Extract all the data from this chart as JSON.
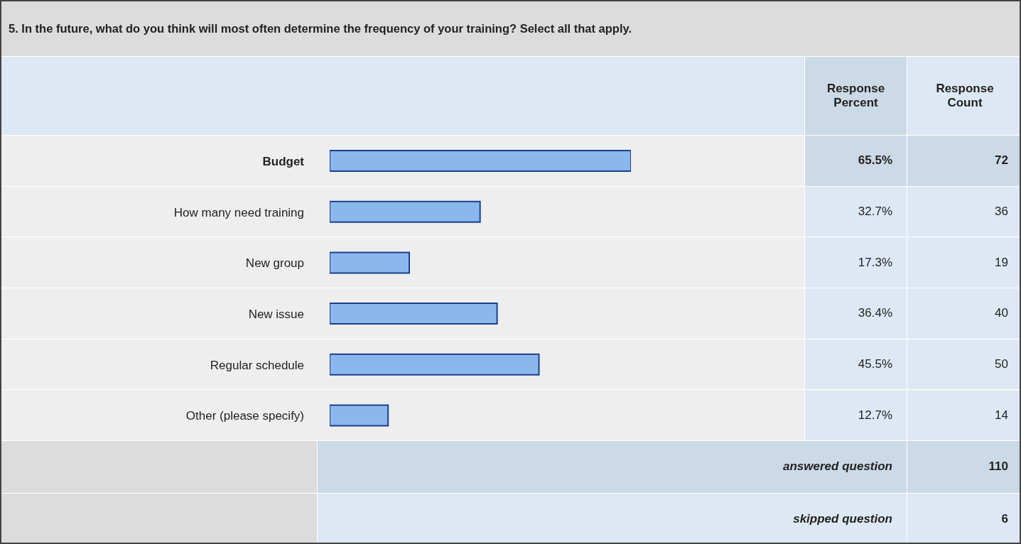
{
  "chart_data": {
    "type": "bar",
    "orientation": "horizontal",
    "title": "5. In the future, what do you think will most often determine the frequency of your training? Select all that apply.",
    "categories": [
      "Budget",
      "How many need training",
      "New group",
      "New issue",
      "Regular schedule",
      "Other (please specify)"
    ],
    "values": [
      65.5,
      32.7,
      17.3,
      36.4,
      45.5,
      12.7
    ],
    "value_labels": [
      "65.5%",
      "32.7%",
      "17.3%",
      "36.4%",
      "45.5%",
      "12.7%"
    ],
    "color": "#8ab8ec",
    "annotations": [
      "Response Percent",
      "Response Count",
      "72",
      "36",
      "19",
      "40",
      "50",
      "14",
      "answered question",
      "110",
      "skipped question",
      "6"
    ]
  }
}
